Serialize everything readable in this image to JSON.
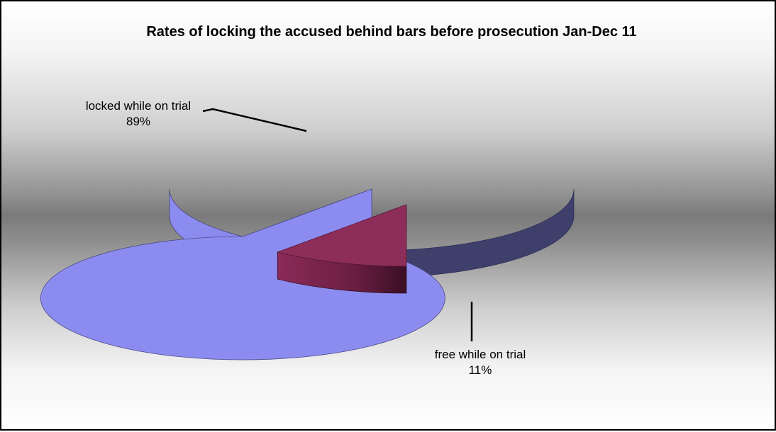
{
  "chart_data": {
    "type": "pie",
    "style": "3d-exploded",
    "title": "Rates of locking the accused behind bars before prosecution Jan-Dec 11",
    "slices": [
      {
        "label": "locked while on trial",
        "value": 89,
        "percent_label": "89%",
        "color": "#8c8cf0"
      },
      {
        "label": "free while on trial",
        "value": 11,
        "percent_label": "11%",
        "color": "#8d2d5a"
      }
    ],
    "legend": "none",
    "background": "gray gradient band"
  }
}
